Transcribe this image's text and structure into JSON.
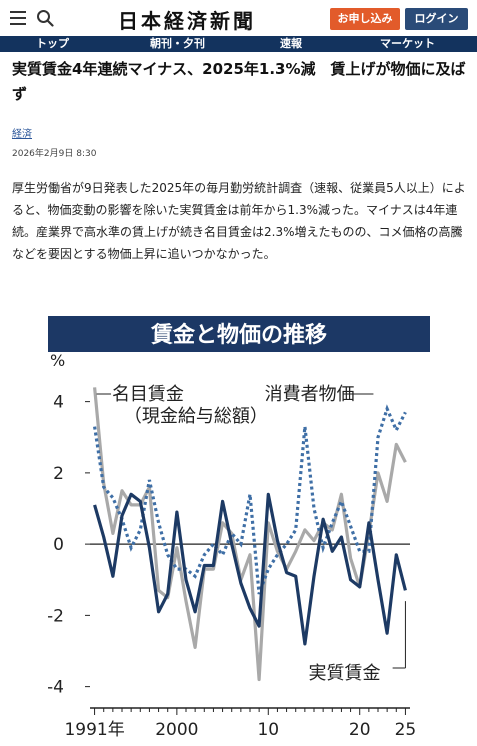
{
  "header": {
    "logo": "日本経済新聞",
    "subscribe_label": "お申し込み",
    "login_label": "ログイン"
  },
  "nav": {
    "items": [
      "トップ",
      "朝刊・夕刊",
      "速報",
      "マーケット"
    ]
  },
  "article": {
    "headline": "実質賃金4年連続マイナス、2025年1.3%減　賃上げが物価に及ばず",
    "category": "経済",
    "date": "2026年2月9日 8:30",
    "body": "厚生労働省が9日発表した2025年の毎月勤労統計調査（速報、従業員5人以上）によると、物価変動の影響を除いた実質賃金は前年から1.3%減った。マイナスは4年連続。産業界で高水準の賃上げが続き名目賃金は2.3%増えたものの、コメ価格の高騰などを要因とする物価上昇に追いつかなかった。"
  },
  "colors": {
    "nav_bg": "#13335e",
    "subscribe": "#e25b2a",
    "login": "#2a4b78",
    "real_wage": "#1d3a64",
    "nominal_wage": "#a9a9a9",
    "cpi": "#3f6fa6"
  },
  "chart_data": {
    "type": "line",
    "title": "賃金と物価の推移",
    "ylabel": "%",
    "ylim": [
      -4.6,
      5
    ],
    "yticks": [
      4,
      2,
      0,
      -2,
      -4
    ],
    "xlim": [
      1990.5,
      2025.5
    ],
    "xticks": [
      {
        "value": 1991,
        "label": "1991年"
      },
      {
        "value": 2000,
        "label": "2000"
      },
      {
        "value": 2010,
        "label": "10"
      },
      {
        "value": 2020,
        "label": "20"
      },
      {
        "value": 2025,
        "label": "25"
      }
    ],
    "x": [
      1991,
      1992,
      1993,
      1994,
      1995,
      1996,
      1997,
      1998,
      1999,
      2000,
      2001,
      2002,
      2003,
      2004,
      2005,
      2006,
      2007,
      2008,
      2009,
      2010,
      2011,
      2012,
      2013,
      2014,
      2015,
      2016,
      2017,
      2018,
      2019,
      2020,
      2021,
      2022,
      2023,
      2024,
      2025
    ],
    "series": [
      {
        "name": "名目賃金",
        "note": "（現金給与総額）",
        "style": "solid-gray",
        "values": [
          4.4,
          1.7,
          0.3,
          1.5,
          1.1,
          1.1,
          1.6,
          -1.3,
          -1.5,
          -0.1,
          -1.6,
          -2.9,
          -0.7,
          -0.7,
          0.6,
          0.3,
          -1.0,
          -0.3,
          -3.8,
          0.6,
          -0.2,
          -0.7,
          -0.2,
          0.4,
          0.1,
          0.6,
          0.4,
          1.4,
          -0.4,
          -1.2,
          0.3,
          2.0,
          1.2,
          2.8,
          2.3
        ]
      },
      {
        "name": "消費者物価",
        "style": "dotted-blue",
        "values": [
          3.3,
          1.6,
          1.3,
          0.7,
          -0.1,
          0.4,
          1.8,
          0.6,
          -0.3,
          -0.7,
          -0.7,
          -0.9,
          -0.3,
          0.0,
          -0.3,
          0.3,
          0.0,
          1.4,
          -1.4,
          -0.7,
          -0.3,
          0.0,
          0.4,
          3.3,
          1.0,
          -0.1,
          0.6,
          1.2,
          0.5,
          -0.2,
          -0.2,
          3.0,
          3.8,
          3.2,
          3.7
        ]
      },
      {
        "name": "実質賃金",
        "style": "solid-navy",
        "values": [
          1.1,
          0.2,
          -0.9,
          0.8,
          1.4,
          1.2,
          -0.1,
          -1.9,
          -1.4,
          0.9,
          -1.0,
          -1.9,
          -0.6,
          -0.6,
          1.2,
          0.0,
          -1.1,
          -1.8,
          -2.3,
          1.4,
          0.1,
          -0.8,
          -0.9,
          -2.8,
          -0.9,
          0.7,
          -0.2,
          0.2,
          -1.0,
          -1.2,
          0.6,
          -1.0,
          -2.5,
          -0.3,
          -1.3
        ]
      }
    ]
  }
}
